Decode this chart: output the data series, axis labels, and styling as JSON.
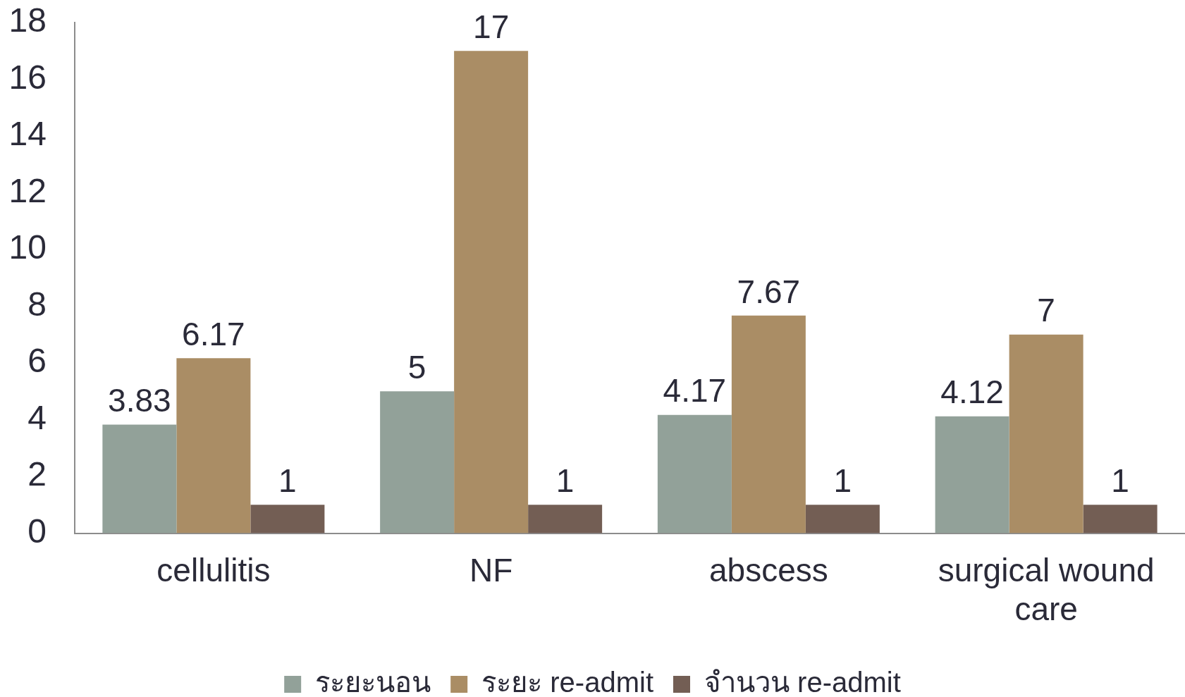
{
  "chart_data": {
    "type": "bar",
    "categories": [
      "cellulitis",
      "NF",
      "abscess",
      "surgical wound care"
    ],
    "series": [
      {
        "name": "ระยะนอน",
        "color": "#92a199",
        "values": [
          3.83,
          5,
          4.17,
          4.12
        ]
      },
      {
        "name": "ระยะ re-admit",
        "color": "#aa8d65",
        "values": [
          6.17,
          17,
          7.67,
          7
        ]
      },
      {
        "name": "จำนวน re-admit",
        "color": "#735e54",
        "values": [
          1,
          1,
          1,
          1
        ]
      }
    ],
    "ylim": [
      0,
      18
    ],
    "yticks": [
      0,
      2,
      4,
      6,
      8,
      10,
      12,
      14,
      16,
      18
    ],
    "legend": "bottom",
    "data_labels": true
  }
}
